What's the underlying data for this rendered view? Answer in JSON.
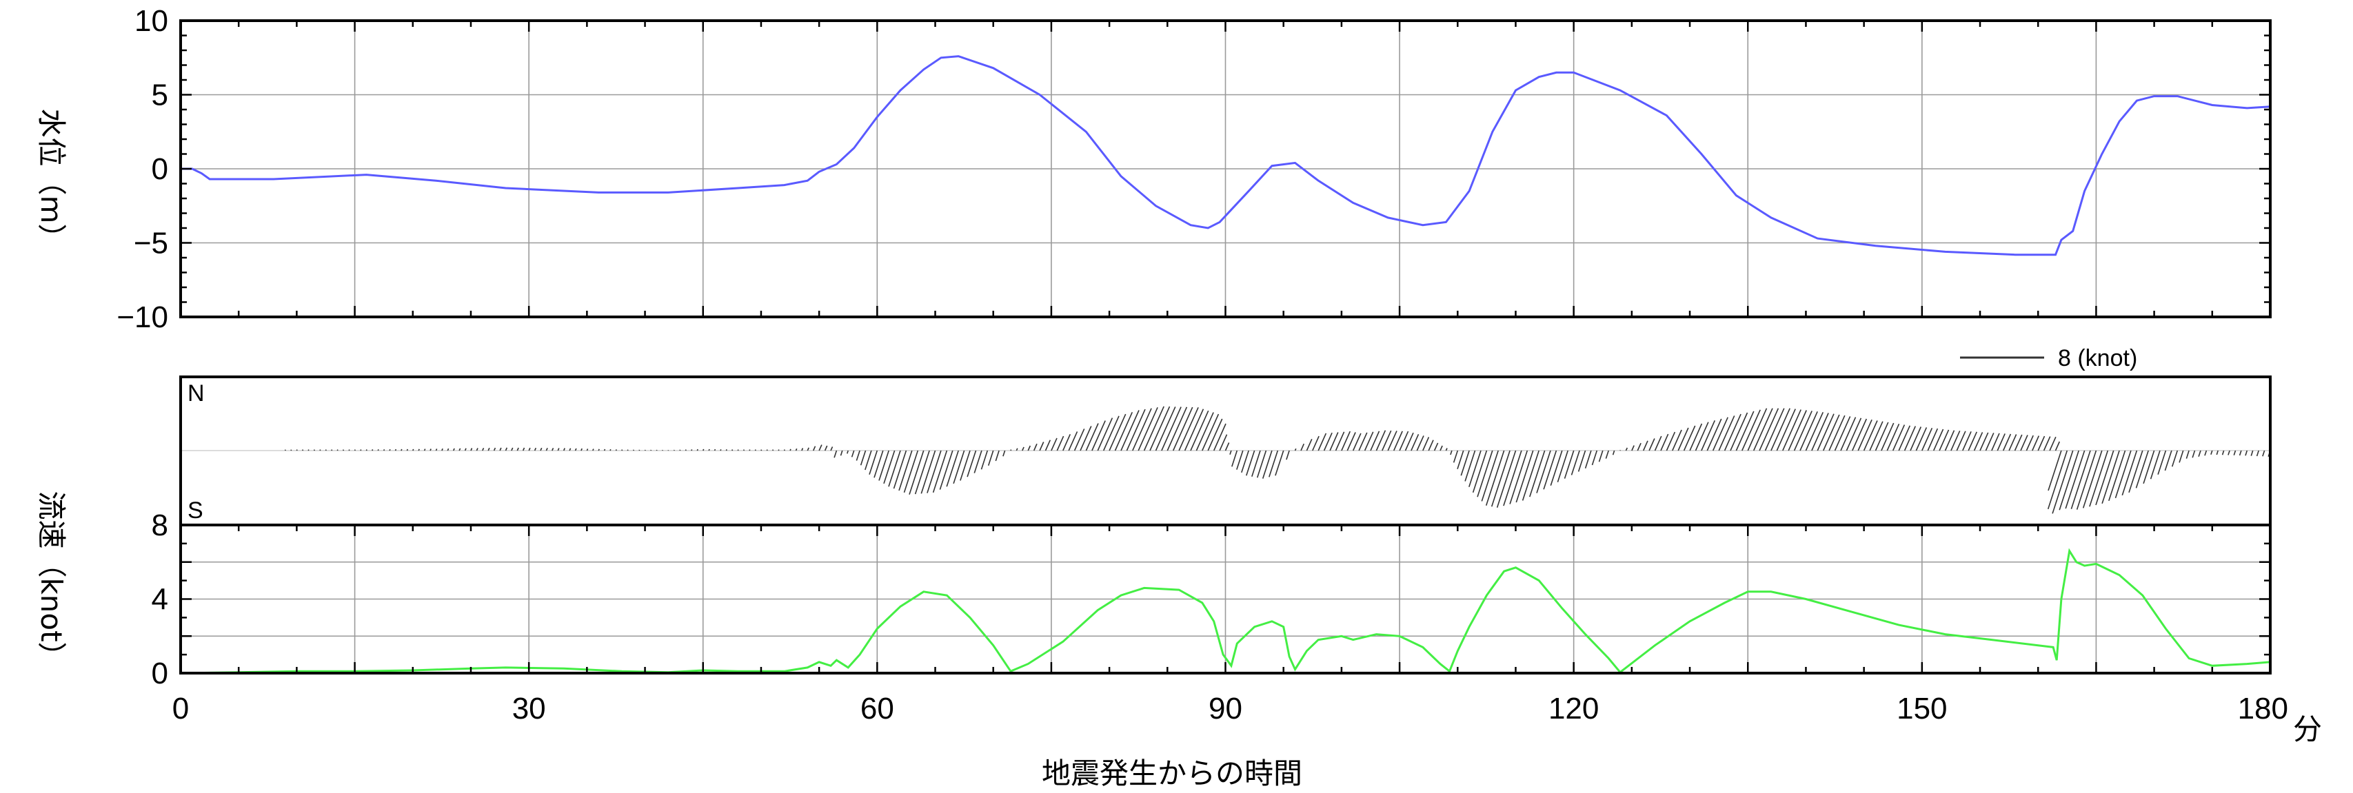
{
  "chart_data": [
    {
      "type": "line",
      "panel": "water-level",
      "ylabel": "水位（m）",
      "xlim": [
        0,
        180
      ],
      "ylim": [
        -10,
        10
      ],
      "y_ticks": [
        -10,
        -5,
        0,
        5,
        10
      ],
      "y_tick_labels": [
        "−10",
        "−5",
        "0",
        "5",
        "10"
      ],
      "grid": true,
      "series": [
        {
          "color": "#5a5aff",
          "points": [
            [
              0,
              0
            ],
            [
              1,
              0
            ],
            [
              1.8,
              -0.3
            ],
            [
              2.5,
              -0.7
            ],
            [
              8,
              -0.7
            ],
            [
              16,
              -0.4
            ],
            [
              22,
              -0.8
            ],
            [
              28,
              -1.3
            ],
            [
              36,
              -1.6
            ],
            [
              42,
              -1.6
            ],
            [
              48,
              -1.3
            ],
            [
              52,
              -1.1
            ],
            [
              54,
              -0.8
            ],
            [
              55,
              -0.2
            ],
            [
              56.5,
              0.3
            ],
            [
              58,
              1.4
            ],
            [
              60,
              3.5
            ],
            [
              62,
              5.3
            ],
            [
              64,
              6.7
            ],
            [
              65.5,
              7.5
            ],
            [
              67,
              7.6
            ],
            [
              70,
              6.8
            ],
            [
              74,
              5.0
            ],
            [
              78,
              2.5
            ],
            [
              81,
              -0.5
            ],
            [
              84,
              -2.5
            ],
            [
              87,
              -3.8
            ],
            [
              88.5,
              -4.0
            ],
            [
              89.5,
              -3.6
            ],
            [
              92,
              -1.5
            ],
            [
              94,
              0.2
            ],
            [
              96,
              0.4
            ],
            [
              98,
              -0.8
            ],
            [
              101,
              -2.3
            ],
            [
              104,
              -3.3
            ],
            [
              107,
              -3.8
            ],
            [
              109,
              -3.6
            ],
            [
              111,
              -1.5
            ],
            [
              113,
              2.5
            ],
            [
              115,
              5.3
            ],
            [
              117,
              6.2
            ],
            [
              118.5,
              6.5
            ],
            [
              120,
              6.5
            ],
            [
              124,
              5.3
            ],
            [
              128,
              3.6
            ],
            [
              131,
              1.0
            ],
            [
              134,
              -1.8
            ],
            [
              137,
              -3.3
            ],
            [
              141,
              -4.7
            ],
            [
              146,
              -5.2
            ],
            [
              152,
              -5.6
            ],
            [
              158,
              -5.8
            ],
            [
              161.5,
              -5.8
            ],
            [
              162,
              -4.8
            ],
            [
              163,
              -4.2
            ],
            [
              164,
              -1.5
            ],
            [
              165.5,
              1.0
            ],
            [
              167,
              3.2
            ],
            [
              168.5,
              4.6
            ],
            [
              170,
              4.9
            ],
            [
              172,
              4.9
            ],
            [
              175,
              4.3
            ],
            [
              178,
              4.1
            ],
            [
              180,
              4.2
            ]
          ]
        }
      ]
    },
    {
      "type": "vector",
      "panel": "current-direction",
      "labels": {
        "north": "N",
        "south": "S"
      },
      "scale_legend": "8 (knot)",
      "scale_knots": 8,
      "xlim": [
        0,
        180
      ],
      "color": "#333333"
    },
    {
      "type": "line",
      "panel": "current-speed",
      "ylabel": "流速（knot）",
      "xlabel": "地震発生からの時間",
      "x_unit": "分",
      "xlim": [
        0,
        180
      ],
      "ylim": [
        0,
        8
      ],
      "x_ticks": [
        0,
        30,
        60,
        90,
        120,
        150,
        180
      ],
      "y_ticks": [
        0,
        4,
        8
      ],
      "grid": true,
      "series": [
        {
          "color": "#44ee44",
          "points": [
            [
              0,
              0
            ],
            [
              5,
              0.05
            ],
            [
              10,
              0.1
            ],
            [
              15,
              0.1
            ],
            [
              20,
              0.15
            ],
            [
              25,
              0.25
            ],
            [
              28,
              0.3
            ],
            [
              33,
              0.25
            ],
            [
              38,
              0.1
            ],
            [
              42,
              0.05
            ],
            [
              45,
              0.15
            ],
            [
              48,
              0.1
            ],
            [
              52,
              0.1
            ],
            [
              54,
              0.3
            ],
            [
              55,
              0.6
            ],
            [
              56,
              0.4
            ],
            [
              56.5,
              0.7
            ],
            [
              57.5,
              0.3
            ],
            [
              58.5,
              1.0
            ],
            [
              60,
              2.4
            ],
            [
              62,
              3.6
            ],
            [
              64,
              4.4
            ],
            [
              66,
              4.2
            ],
            [
              68,
              3.0
            ],
            [
              70,
              1.5
            ],
            [
              71.5,
              0.1
            ],
            [
              73,
              0.5
            ],
            [
              76,
              1.7
            ],
            [
              79,
              3.4
            ],
            [
              81,
              4.2
            ],
            [
              83,
              4.6
            ],
            [
              86,
              4.5
            ],
            [
              88,
              3.8
            ],
            [
              89,
              2.8
            ],
            [
              89.8,
              1.0
            ],
            [
              90.5,
              0.4
            ],
            [
              91,
              1.6
            ],
            [
              92.5,
              2.5
            ],
            [
              94,
              2.8
            ],
            [
              95,
              2.5
            ],
            [
              95.5,
              0.9
            ],
            [
              96,
              0.2
            ],
            [
              97,
              1.2
            ],
            [
              98,
              1.8
            ],
            [
              100,
              2.0
            ],
            [
              101,
              1.8
            ],
            [
              103,
              2.1
            ],
            [
              105,
              2.0
            ],
            [
              107,
              1.4
            ],
            [
              108.5,
              0.5
            ],
            [
              109.3,
              0.1
            ],
            [
              110,
              1.2
            ],
            [
              111,
              2.5
            ],
            [
              112.5,
              4.2
            ],
            [
              114,
              5.5
            ],
            [
              115,
              5.7
            ],
            [
              117,
              5.0
            ],
            [
              119,
              3.5
            ],
            [
              121,
              2.1
            ],
            [
              123,
              0.8
            ],
            [
              124,
              0.05
            ],
            [
              127,
              1.5
            ],
            [
              130,
              2.8
            ],
            [
              133,
              3.8
            ],
            [
              135,
              4.4
            ],
            [
              137,
              4.4
            ],
            [
              140,
              4.0
            ],
            [
              144,
              3.3
            ],
            [
              148,
              2.6
            ],
            [
              152,
              2.1
            ],
            [
              156,
              1.8
            ],
            [
              160,
              1.5
            ],
            [
              161.3,
              1.4
            ],
            [
              161.6,
              0.7
            ],
            [
              162,
              4.0
            ],
            [
              162.7,
              6.6
            ],
            [
              163.3,
              6.0
            ],
            [
              164,
              5.8
            ],
            [
              165,
              5.9
            ],
            [
              167,
              5.3
            ],
            [
              169,
              4.2
            ],
            [
              171,
              2.4
            ],
            [
              173,
              0.8
            ],
            [
              175,
              0.4
            ],
            [
              178,
              0.5
            ],
            [
              180,
              0.6
            ]
          ]
        }
      ]
    }
  ]
}
